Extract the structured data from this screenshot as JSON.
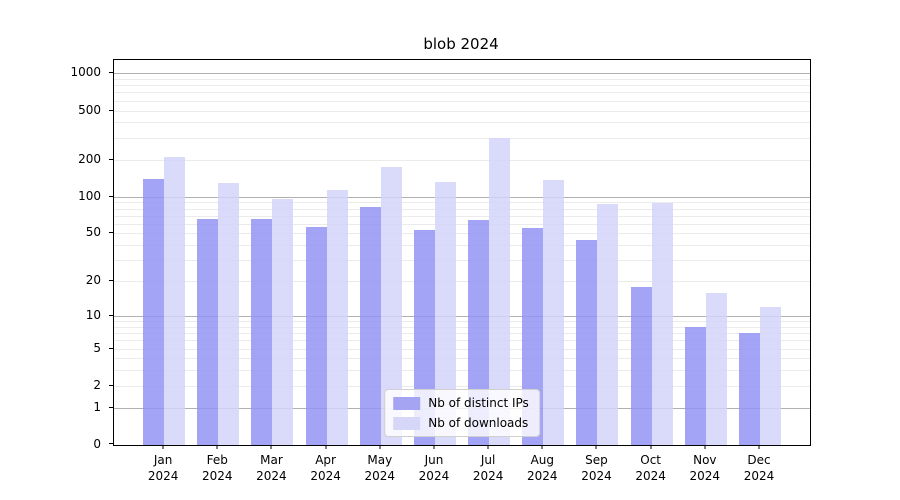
{
  "title": "blob 2024",
  "colors": {
    "ips_bar": "rgba(148,148,245,0.85)",
    "downloads_bar": "rgba(212,212,250,0.85)",
    "ips_swatch": "#a4a4f2",
    "downloads_swatch": "#d6d6f8",
    "major_grid": "#b0b0b0",
    "minor_grid": "#ebebeb"
  },
  "legend": {
    "items": [
      {
        "label": "Nb of distinct IPs",
        "series": "ips"
      },
      {
        "label": "Nb of downloads",
        "series": "downloads"
      }
    ]
  },
  "x_axis": {
    "months": [
      "Jan",
      "Feb",
      "Mar",
      "Apr",
      "May",
      "Jun",
      "Jul",
      "Aug",
      "Sep",
      "Oct",
      "Nov",
      "Dec"
    ],
    "year_line": "2024"
  },
  "y_axis": {
    "tick_labels": [
      "1000",
      "500",
      "200",
      "100",
      "50",
      "20",
      "10",
      "5",
      "2",
      "1",
      "0"
    ],
    "tick_values": [
      1000,
      500,
      200,
      100,
      50,
      20,
      10,
      5,
      2,
      1,
      0
    ],
    "major_gridline_values": [
      1,
      10,
      100,
      1000
    ],
    "minor_gridline_values": [
      2,
      3,
      4,
      5,
      6,
      7,
      8,
      9,
      20,
      30,
      40,
      50,
      60,
      70,
      80,
      90,
      200,
      300,
      400,
      500,
      600,
      700,
      800,
      900
    ]
  },
  "chart_data": {
    "type": "bar",
    "title": "blob 2024",
    "categories": [
      "Jan 2024",
      "Feb 2024",
      "Mar 2024",
      "Apr 2024",
      "May 2024",
      "Jun 2024",
      "Jul 2024",
      "Aug 2024",
      "Sep 2024",
      "Oct 2024",
      "Nov 2024",
      "Dec 2024"
    ],
    "series": [
      {
        "name": "Nb of distinct IPs",
        "values": [
          140,
          66,
          66,
          57,
          83,
          53,
          64,
          55,
          44,
          18,
          8,
          7
        ]
      },
      {
        "name": "Nb of downloads",
        "values": [
          210,
          129,
          95,
          114,
          175,
          131,
          300,
          136,
          88,
          89,
          16,
          12
        ]
      }
    ],
    "xlabel": "",
    "ylabel": "",
    "yscale": "log1p",
    "ylim": [
      0,
      1280
    ],
    "yticks": [
      0,
      1,
      2,
      5,
      10,
      20,
      50,
      100,
      200,
      500,
      1000
    ],
    "grid": "horizontal",
    "legend_position": "lower center"
  }
}
